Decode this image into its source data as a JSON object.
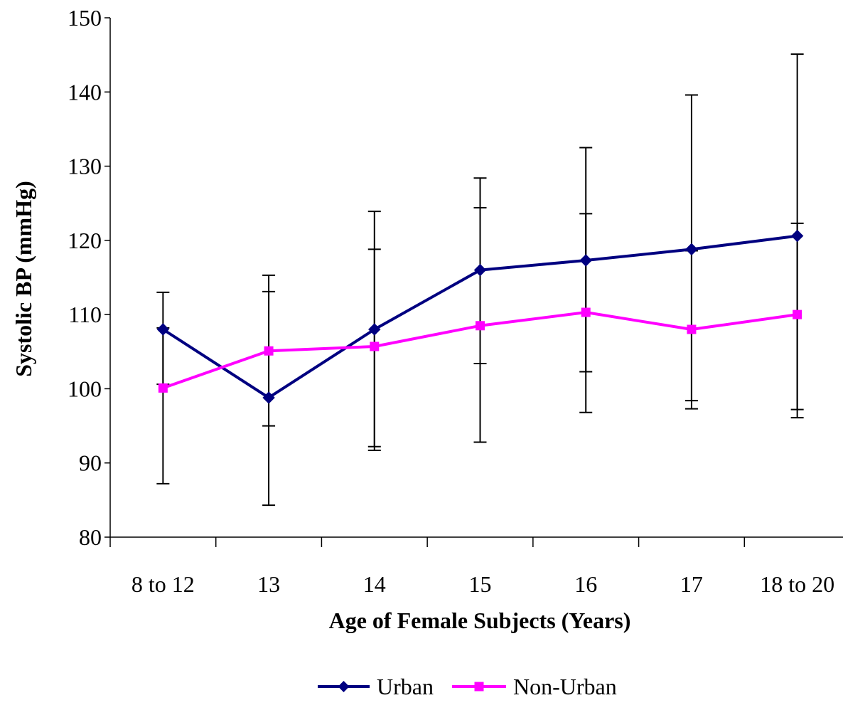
{
  "chart_data": {
    "type": "line",
    "title": "",
    "xlabel": "Age of Female Subjects (Years)",
    "ylabel": "Systolic BP (mmHg)",
    "ylim": [
      80,
      150
    ],
    "yticks": [
      80,
      90,
      100,
      110,
      120,
      130,
      140,
      150
    ],
    "categories": [
      "8 to 12",
      "13",
      "14",
      "15",
      "16",
      "17",
      "18 to 20"
    ],
    "grid": false,
    "legend_position": "bottom",
    "series": [
      {
        "name": "Urban",
        "color": "#000080",
        "marker": "diamond",
        "values": [
          108,
          98.8,
          108,
          116,
          117.3,
          118.8,
          120.6
        ],
        "error_low": [
          100.6,
          84.3,
          92.2,
          103.4,
          102.3,
          98.4,
          96.1
        ],
        "error_high": [
          113,
          113.1,
          118.8,
          124.4,
          132.5,
          139.6,
          145.1
        ]
      },
      {
        "name": "Non-Urban",
        "color": "#FF00FF",
        "marker": "square",
        "values": [
          100.1,
          105.1,
          105.7,
          108.5,
          110.3,
          108,
          110
        ],
        "error_low": [
          87.2,
          95,
          91.7,
          92.8,
          96.8,
          97.3,
          97.2
        ],
        "error_high": [
          108.2,
          115.3,
          123.9,
          128.4,
          123.6,
          118.6,
          122.3
        ]
      }
    ]
  }
}
